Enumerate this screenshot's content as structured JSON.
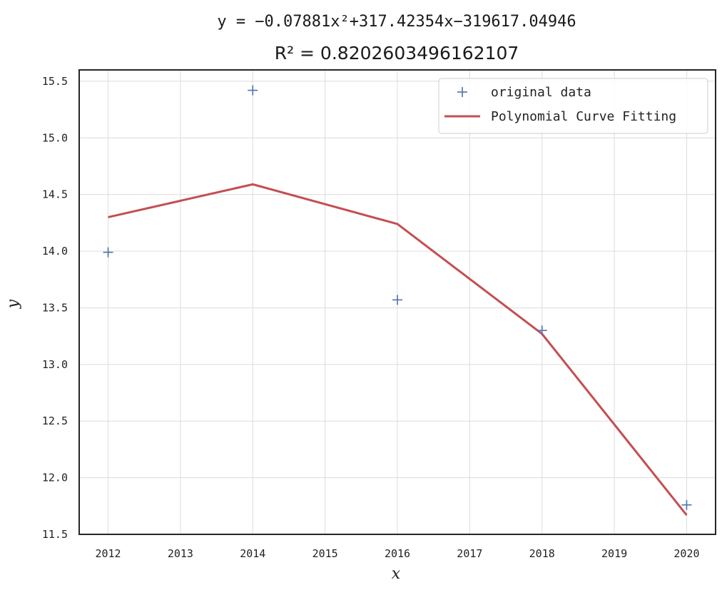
{
  "chart_data": {
    "type": "line",
    "title": "y = −0.07881x²+317.42354x−319617.04946",
    "subtitle": "R² = 0.8202603496162107",
    "xlabel": "x",
    "ylabel": "y",
    "xlim": [
      2011.6,
      2020.4
    ],
    "ylim": [
      11.5,
      15.6
    ],
    "xticks": [
      2012,
      2013,
      2014,
      2015,
      2016,
      2017,
      2018,
      2019,
      2020
    ],
    "yticks": [
      11.5,
      12.0,
      12.5,
      13.0,
      13.5,
      14.0,
      14.5,
      15.0,
      15.5
    ],
    "ytick_labels": [
      "11.5",
      "12.0",
      "12.5",
      "13.0",
      "13.5",
      "14.0",
      "14.5",
      "15.0",
      "15.5"
    ],
    "grid": true,
    "legend_position": "top-right",
    "series": [
      {
        "name": "original data",
        "kind": "scatter",
        "marker": "+",
        "color": "#4c72b0",
        "x": [
          2012,
          2014,
          2016,
          2018,
          2020
        ],
        "y": [
          13.99,
          15.42,
          13.57,
          13.3,
          11.76
        ]
      },
      {
        "name": "Polynomial Curve Fitting",
        "kind": "line",
        "color": "#c44e52",
        "x": [
          2012,
          2014,
          2016,
          2018,
          2020
        ],
        "y": [
          14.3,
          14.59,
          14.24,
          13.27,
          11.67
        ]
      }
    ]
  }
}
